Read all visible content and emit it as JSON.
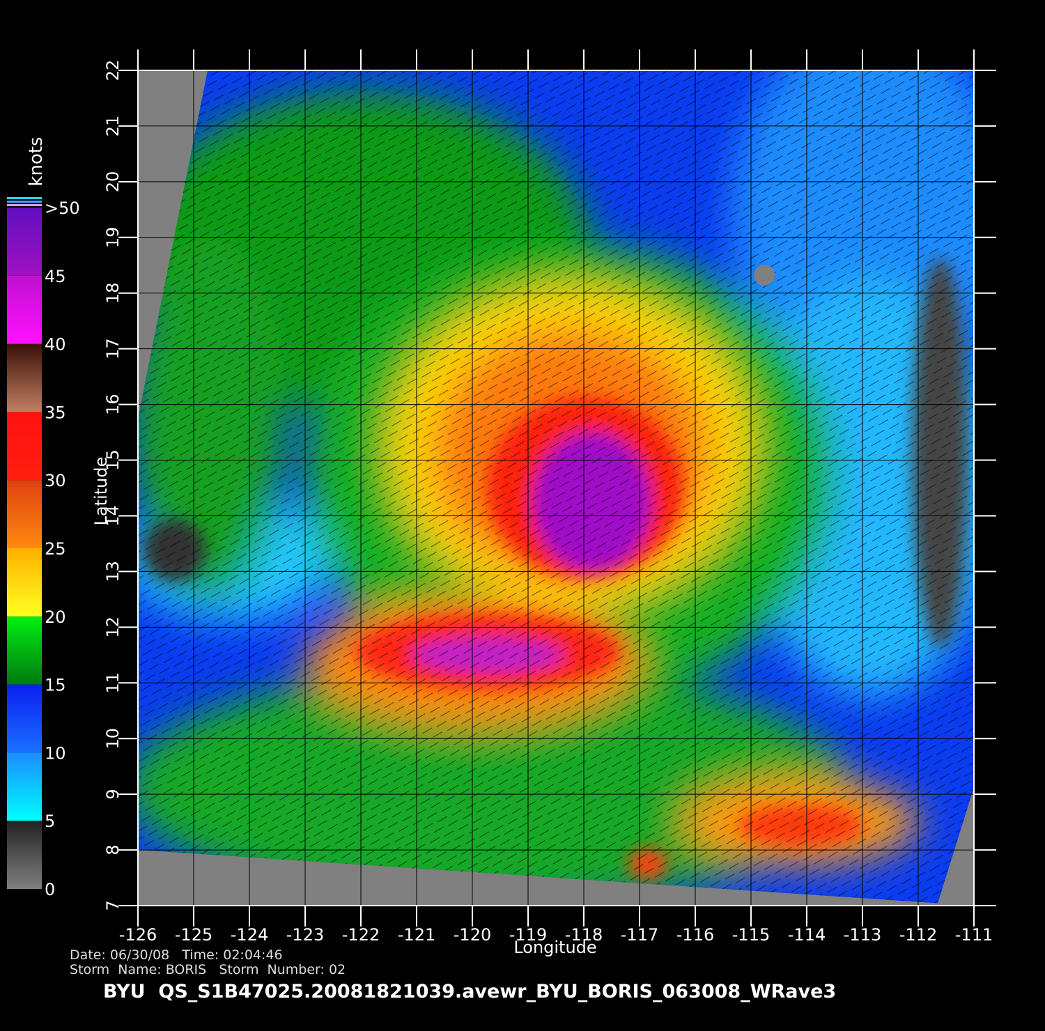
{
  "map": {
    "x_label": "Longitude",
    "y_label": "Latitude",
    "xlim": [
      -126,
      -111
    ],
    "ylim": [
      7,
      22
    ],
    "xticks": [
      -126,
      -125,
      -124,
      -123,
      -122,
      -121,
      -120,
      -119,
      -118,
      -117,
      -116,
      -115,
      -114,
      -113,
      -112,
      -111
    ],
    "yticks": [
      7,
      8,
      9,
      10,
      11,
      12,
      13,
      14,
      15,
      16,
      17,
      18,
      19,
      20,
      21,
      22
    ]
  },
  "colorbar": {
    "title": "knots",
    "range": [
      0,
      50
    ],
    "ticks": [
      0,
      5,
      10,
      15,
      20,
      25,
      30,
      35,
      40,
      45,
      {
        "value": 50,
        "label": ">50"
      }
    ]
  },
  "footer": {
    "date_time": "Date: 06/30/08   Time: 02:04:46",
    "storm": "Storm  Name: BORIS   Storm  Number: 02",
    "title": "BYU  QS_S1B47025.20081821039.avewr_BYU_BORIS_063008_WRave3"
  }
}
